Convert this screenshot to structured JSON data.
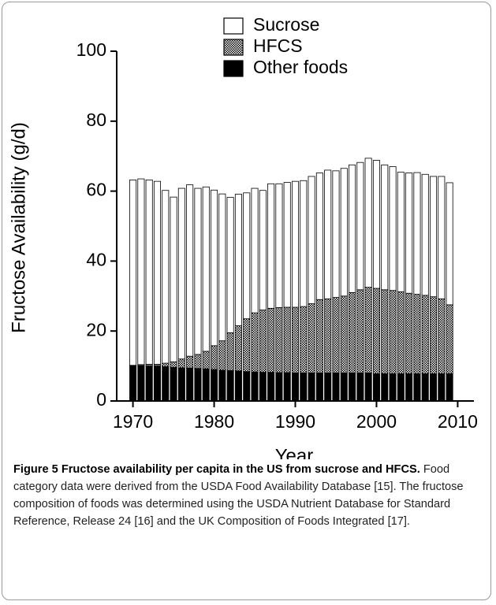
{
  "chart_data": {
    "type": "stacked-bar",
    "ylabel": "Fructose Availability (g/d)",
    "xlabel": "Year",
    "x": [
      1970,
      1971,
      1972,
      1973,
      1974,
      1975,
      1976,
      1977,
      1978,
      1979,
      1980,
      1981,
      1982,
      1983,
      1984,
      1985,
      1986,
      1987,
      1988,
      1989,
      1990,
      1991,
      1992,
      1993,
      1994,
      1995,
      1996,
      1997,
      1998,
      1999,
      2000,
      2001,
      2002,
      2003,
      2004,
      2005,
      2006,
      2007,
      2008,
      2009
    ],
    "series": [
      {
        "name": "Sucrose",
        "color": "#ffffff",
        "values": [
          53.0,
          53.1,
          52.7,
          52.3,
          49.4,
          47.1,
          48.8,
          49.0,
          47.5,
          47.0,
          44.5,
          42.0,
          38.7,
          37.6,
          36.0,
          35.6,
          34.2,
          35.6,
          35.4,
          35.7,
          36.0,
          36.0,
          36.4,
          36.2,
          36.8,
          36.2,
          36.5,
          36.5,
          36.4,
          36.9,
          36.6,
          35.7,
          35.4,
          34.2,
          34.4,
          34.8,
          34.6,
          34.4,
          35.0,
          34.9
        ]
      },
      {
        "name": "HFCS",
        "color": "#808080",
        "values": [
          0.2,
          0.3,
          0.5,
          0.5,
          1.0,
          1.6,
          2.5,
          3.4,
          4.0,
          5.0,
          6.8,
          8.4,
          10.8,
          12.9,
          15.1,
          16.9,
          17.8,
          18.3,
          18.6,
          18.7,
          18.8,
          19.0,
          19.8,
          21.0,
          21.2,
          21.6,
          22.0,
          23.0,
          23.8,
          24.5,
          24.4,
          24.0,
          23.8,
          23.4,
          23.0,
          22.7,
          22.4,
          22.0,
          21.4,
          19.7
        ]
      },
      {
        "name": "Other foods",
        "color": "#000000",
        "values": [
          10.0,
          10.1,
          10.0,
          10.0,
          9.8,
          9.6,
          9.5,
          9.4,
          9.3,
          9.2,
          9.0,
          8.8,
          8.7,
          8.6,
          8.4,
          8.3,
          8.2,
          8.2,
          8.1,
          8.1,
          8.0,
          8.0,
          8.0,
          8.0,
          8.0,
          8.0,
          8.0,
          8.0,
          8.0,
          8.0,
          7.8,
          7.8,
          7.8,
          7.8,
          7.8,
          7.8,
          7.8,
          7.8,
          7.8,
          7.8
        ]
      }
    ],
    "xlim": [
      1968,
      2012
    ],
    "xticks": [
      1970,
      1980,
      1990,
      2000,
      2010
    ],
    "ylim": [
      0,
      100
    ],
    "yticks": [
      0,
      20,
      40,
      60,
      80,
      100
    ],
    "legend": "top"
  },
  "caption": {
    "label": "Figure 5",
    "title": "Fructose availability per capita in the US from sucrose and HFCS.",
    "text": "Food category data were derived from the USDA Food Availability Database [15]. The fructose composition of foods was determined using the USDA Nutrient Database for Standard Reference, Release 24 [16] and the UK Composition of Foods Integrated [17]."
  }
}
